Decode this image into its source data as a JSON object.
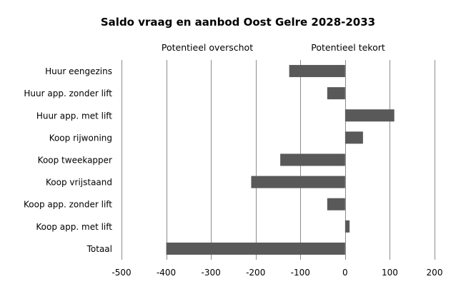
{
  "chart_data": {
    "type": "bar",
    "orientation": "horizontal",
    "title": "Saldo vraag en aanbod Oost Gelre 2028-2033",
    "annotations": {
      "left": "Potentieel overschot",
      "right": "Potentieel tekort"
    },
    "categories": [
      "Huur eengezins",
      "Huur app. zonder lift",
      "Huur app. met lift",
      "Koop rijwoning",
      "Koop tweekapper",
      "Koop vrijstaand",
      "Koop app. zonder lift",
      "Koop app. met lift",
      "Totaal"
    ],
    "values": [
      -125,
      -40,
      110,
      40,
      -145,
      -210,
      -40,
      10,
      -400
    ],
    "xlim": [
      -500,
      200
    ],
    "xticks": [
      -500,
      -400,
      -300,
      -200,
      -100,
      0,
      100,
      200
    ],
    "xtick_labels": [
      "-500",
      "-400",
      "-300",
      "-200",
      "-100",
      "0",
      "100",
      "200"
    ],
    "grid": true,
    "bar_color": "#595959",
    "grid_color": "#8c8c8c"
  }
}
